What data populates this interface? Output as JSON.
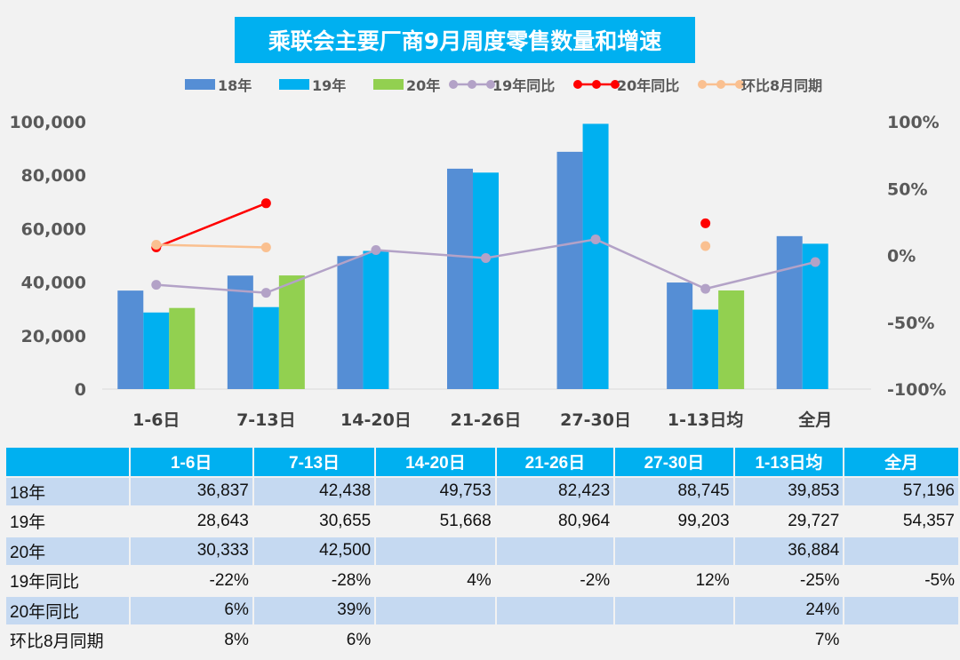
{
  "chart_data": {
    "type": "bar+line",
    "title": "乘联会主要厂商9月周度零售数量和增速",
    "categories": [
      "1-6日",
      "7-13日",
      "14-20日",
      "21-26日",
      "27-30日",
      "1-13日均",
      "全月"
    ],
    "y_left": {
      "min": 0,
      "max": 100000,
      "ticks": [
        "0",
        "20,000",
        "40,000",
        "60,000",
        "80,000",
        "100,000"
      ]
    },
    "y_right": {
      "min": -100,
      "max": 100,
      "ticks": [
        "-100%",
        "-50%",
        "0%",
        "50%",
        "100%"
      ]
    },
    "grid": false,
    "legend_position": "top",
    "bar_series": [
      {
        "name": "18年",
        "color": "#558ed5",
        "values": [
          36837,
          42438,
          49753,
          82423,
          88745,
          39853,
          57196
        ]
      },
      {
        "name": "19年",
        "color": "#00b0f0",
        "values": [
          28643,
          30655,
          51668,
          80964,
          99203,
          29727,
          54357
        ]
      },
      {
        "name": "20年",
        "color": "#92d050",
        "values": [
          30333,
          42500,
          null,
          null,
          null,
          36884,
          null
        ]
      }
    ],
    "line_series": [
      {
        "name": "19年同比",
        "color": "#b3a2c7",
        "values": [
          -22,
          -28,
          4,
          -2,
          12,
          -25,
          -5
        ]
      },
      {
        "name": "20年同比",
        "color": "#ff0000",
        "values": [
          6,
          39,
          null,
          null,
          null,
          24,
          null
        ]
      },
      {
        "name": "环比8月同期",
        "color": "#fac090",
        "values": [
          8,
          6,
          null,
          null,
          null,
          7,
          null
        ]
      }
    ]
  },
  "table": {
    "header": [
      "",
      "1-6日",
      "7-13日",
      "14-20日",
      "21-26日",
      "27-30日",
      "1-13日均",
      "全月"
    ],
    "rows": [
      [
        "18年",
        "36,837",
        "42,438",
        "49,753",
        "82,423",
        "88,745",
        "39,853",
        "57,196"
      ],
      [
        "19年",
        "28,643",
        "30,655",
        "51,668",
        "80,964",
        "99,203",
        "29,727",
        "54,357"
      ],
      [
        "20年",
        "30,333",
        "42,500",
        "",
        "",
        "",
        "36,884",
        ""
      ],
      [
        "19年同比",
        "-22%",
        "-28%",
        "4%",
        "-2%",
        "12%",
        "-25%",
        "-5%"
      ],
      [
        "20年同比",
        "6%",
        "39%",
        "",
        "",
        "",
        "24%",
        ""
      ],
      [
        "环比8月同期",
        "8%",
        "6%",
        "",
        "",
        "",
        "7%",
        ""
      ]
    ]
  }
}
